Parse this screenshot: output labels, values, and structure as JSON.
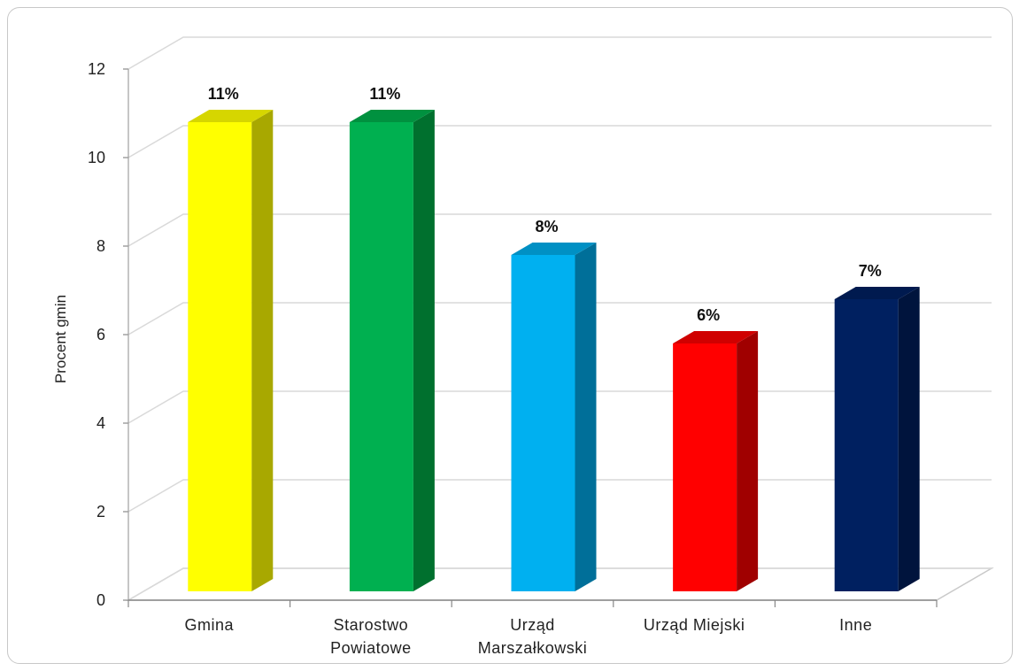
{
  "chart_data": {
    "type": "bar",
    "style": "3d-column",
    "categories": [
      [
        "Gmina"
      ],
      [
        "Starostwo",
        "Powiatowe"
      ],
      [
        "Urząd",
        "Marszałkowski"
      ],
      [
        "Urząd Miejski"
      ],
      [
        "Inne"
      ]
    ],
    "values": [
      11,
      11,
      8,
      6,
      7
    ],
    "data_labels": [
      "11%",
      "11%",
      "8%",
      "6%",
      "7%"
    ],
    "colors": [
      {
        "front": "#ffff00",
        "side": "#a8a800",
        "top": "#d6d600"
      },
      {
        "front": "#00b050",
        "side": "#00702e",
        "top": "#00913f"
      },
      {
        "front": "#00b0f0",
        "side": "#006f99",
        "top": "#0090c4"
      },
      {
        "front": "#ff0000",
        "side": "#a00000",
        "top": "#d00000"
      },
      {
        "front": "#002060",
        "side": "#00143d",
        "top": "#001a4f"
      }
    ],
    "ylabel": "Procent gmin",
    "xlabel": "",
    "title": "",
    "ylim": [
      0,
      12
    ],
    "yticks": [
      "0",
      "2",
      "4",
      "6",
      "8",
      "10",
      "12"
    ],
    "grid": true,
    "legend": "none"
  }
}
